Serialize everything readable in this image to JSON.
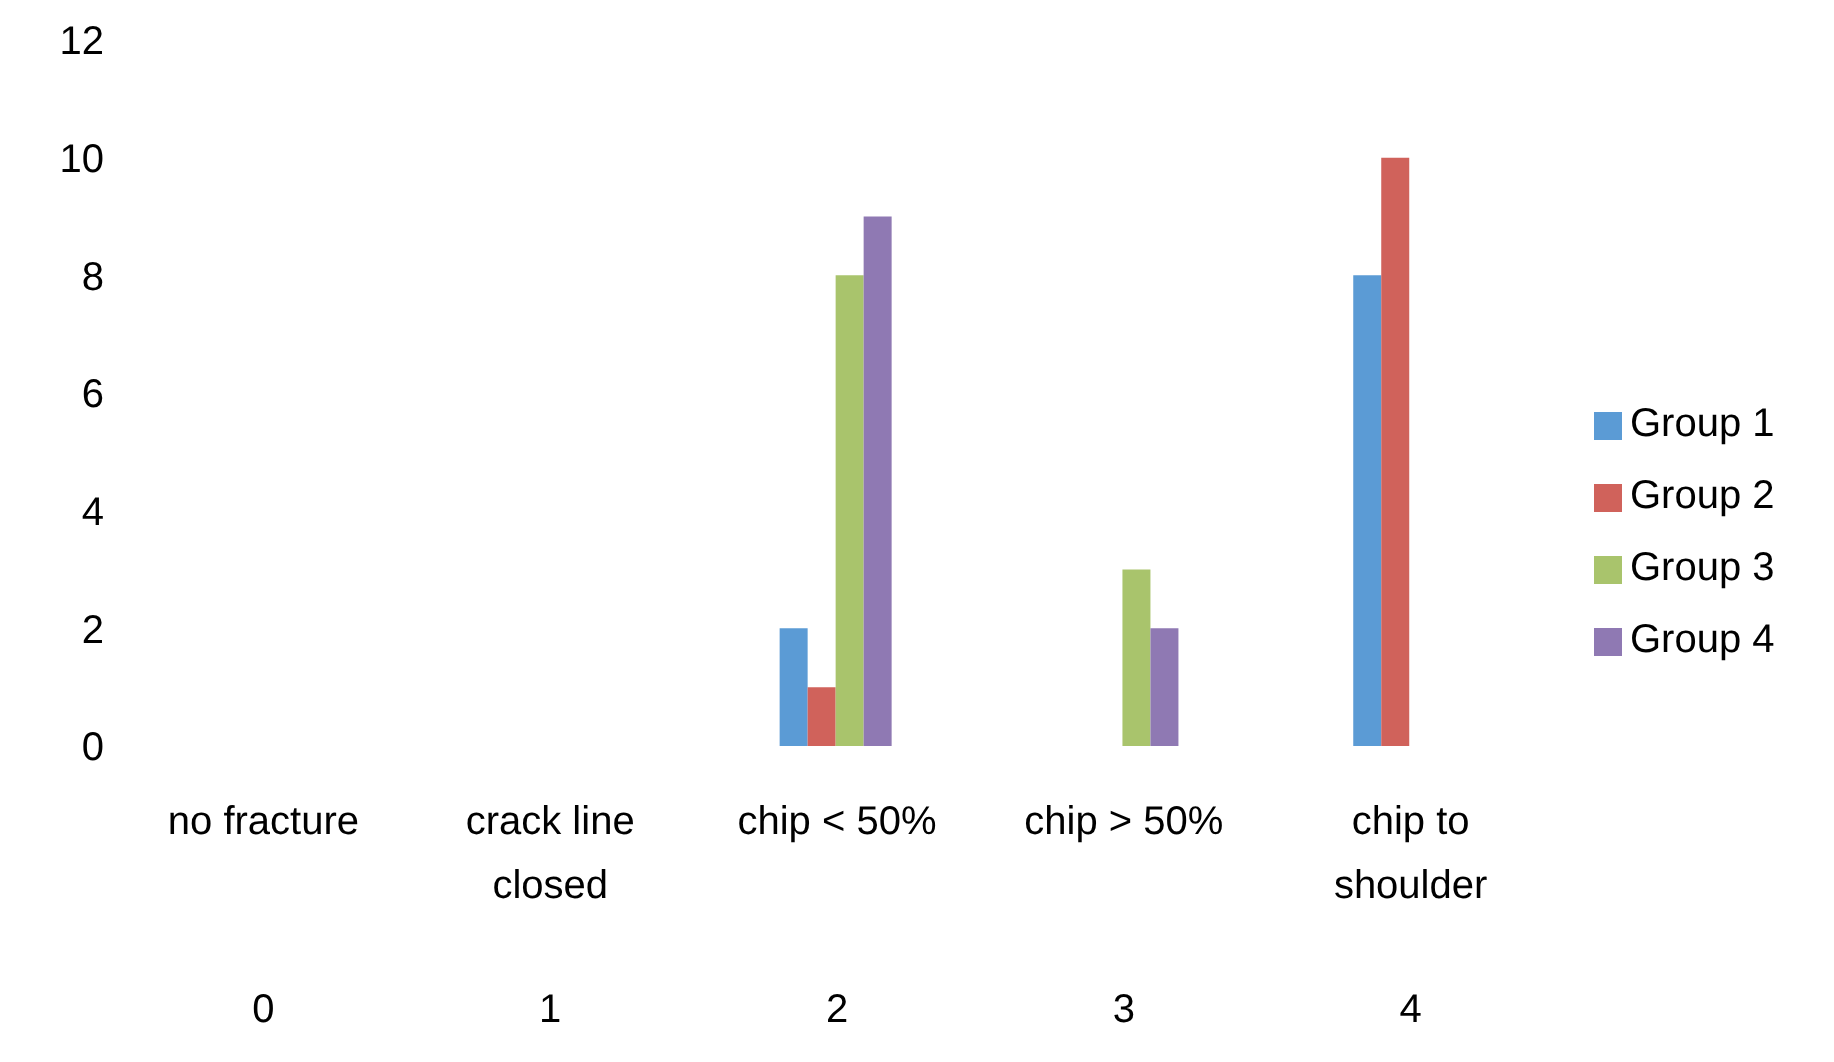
{
  "chart_data": {
    "type": "bar",
    "categories": [
      "no fracture",
      "crack line closed",
      "chip < 50%",
      "chip > 50%",
      "chip to shoulder"
    ],
    "series": [
      {
        "name": "Group 1",
        "color": "#5b9bd5",
        "values": [
          0,
          0,
          2,
          0,
          8
        ]
      },
      {
        "name": "Group 2",
        "color": "#d0625b",
        "values": [
          0,
          0,
          1,
          0,
          10
        ]
      },
      {
        "name": "Group 3",
        "color": "#a9c46c",
        "values": [
          0,
          0,
          8,
          3,
          0
        ]
      },
      {
        "name": "Group 4",
        "color": "#8f79b3",
        "values": [
          0,
          0,
          9,
          2,
          0
        ]
      }
    ],
    "ylim": [
      0,
      12
    ],
    "yticks": [
      0,
      2,
      4,
      6,
      8,
      10,
      12
    ],
    "legend": "right",
    "annotations": [
      "0",
      "1",
      "2",
      "3",
      "4"
    ]
  }
}
